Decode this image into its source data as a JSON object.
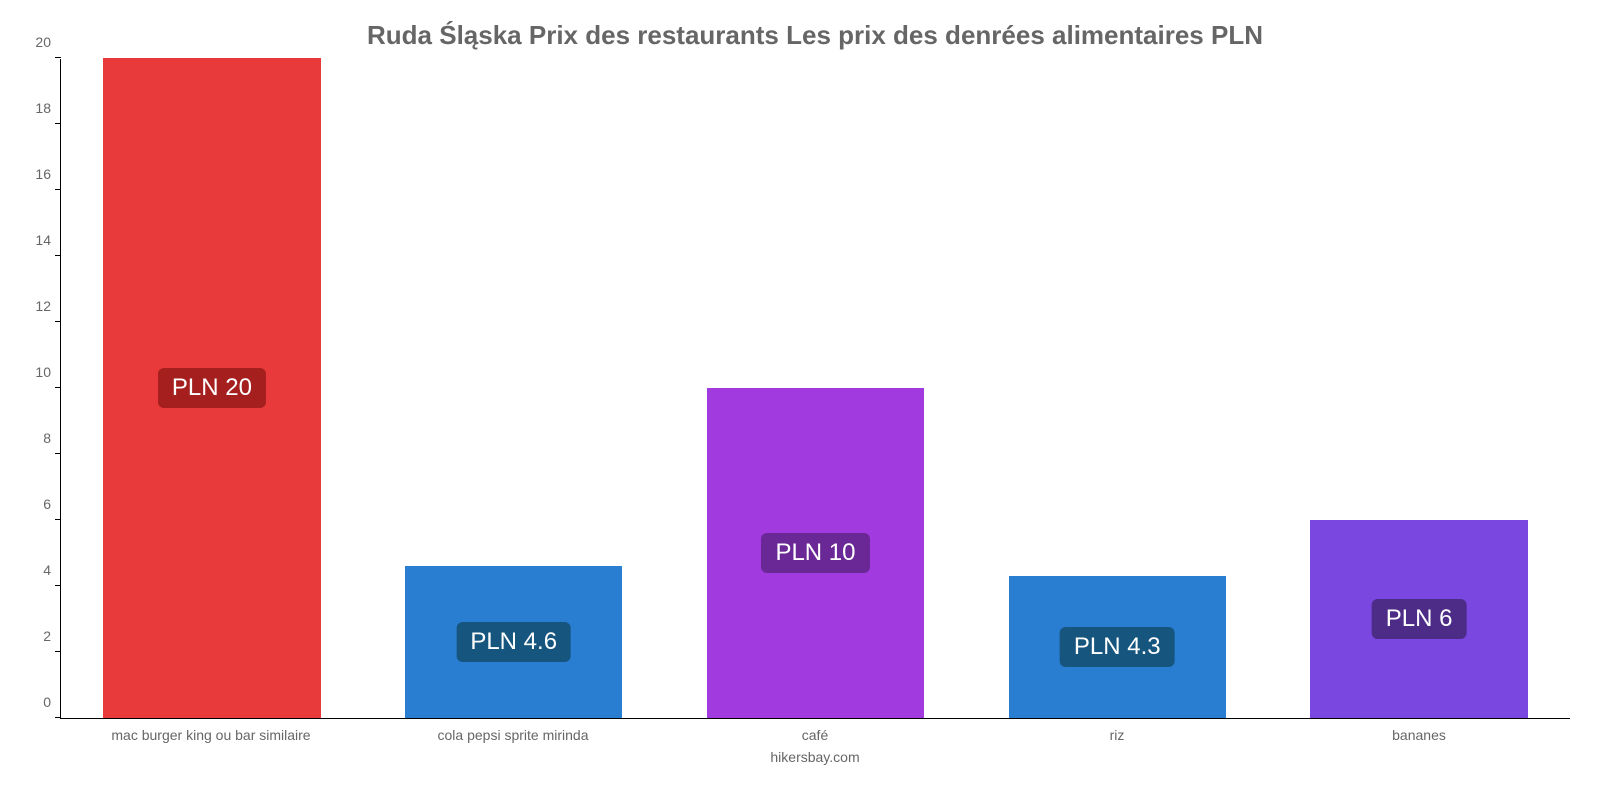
{
  "chart": {
    "type": "bar",
    "title": "Ruda Śląska Prix des restaurants Les prix des denrées alimentaires PLN",
    "title_fontsize": 26,
    "title_color": "#666666",
    "footer": "hikersbay.com",
    "footer_color": "#666666",
    "background_color": "#ffffff",
    "axis_color": "#000000",
    "tick_label_color": "#666666",
    "tick_label_fontsize": 14,
    "x_label_fontsize": 14,
    "value_label_fontsize": 24,
    "ylim": [
      0,
      20
    ],
    "yticks": [
      0,
      2,
      4,
      6,
      8,
      10,
      12,
      14,
      16,
      18,
      20
    ],
    "bar_width_ratio": 0.72,
    "categories": [
      "mac burger king ou bar similaire",
      "cola pepsi sprite mirinda",
      "café",
      "riz",
      "bananes"
    ],
    "values": [
      20,
      4.6,
      10,
      4.3,
      6
    ],
    "value_labels": [
      "PLN 20",
      "PLN 4.6",
      "PLN 10",
      "PLN 4.3",
      "PLN 6"
    ],
    "bar_colors": [
      "#e83a3a",
      "#2a7ed2",
      "#a13be0",
      "#2a7ed2",
      "#7a47e0"
    ],
    "badge_colors": [
      "#a51f1f",
      "#16557e",
      "#6a2796",
      "#16557e",
      "#4d2c88"
    ],
    "badge_text_color": "#ffffff"
  }
}
